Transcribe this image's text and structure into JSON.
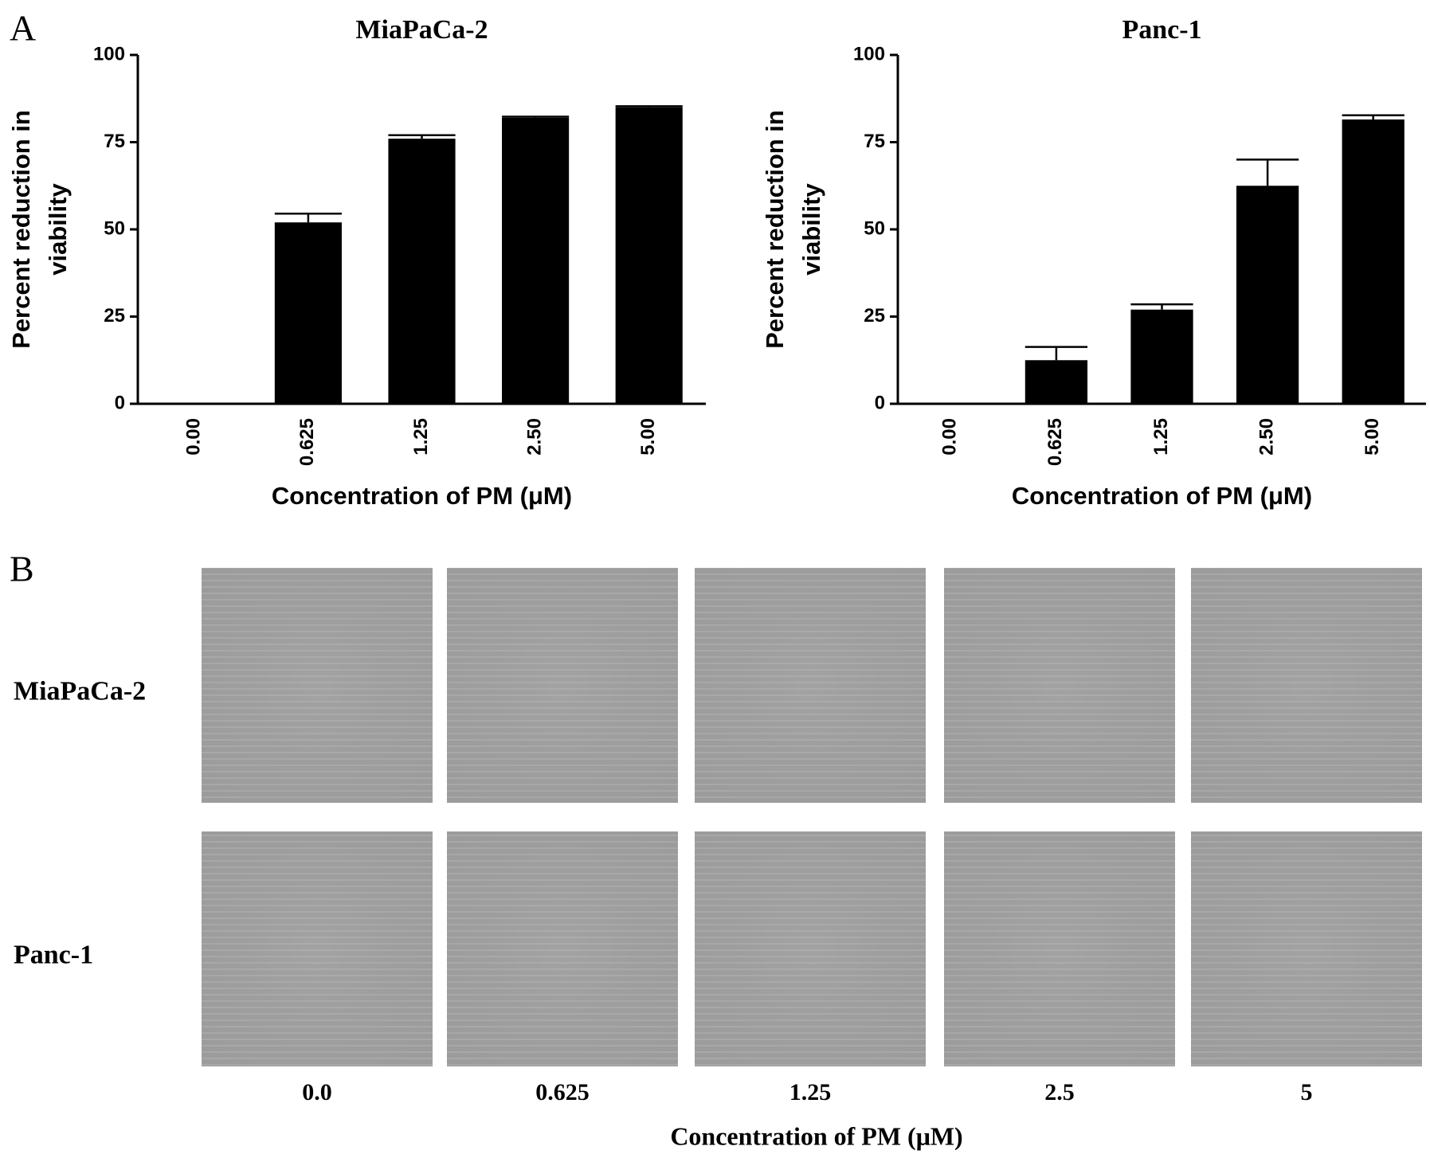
{
  "panel_labels": [
    "A",
    "B"
  ],
  "chart_data": [
    {
      "type": "bar",
      "title": "MiaPaCa-2",
      "ylabel": [
        "Percent reduction in",
        "viability"
      ],
      "xlabel": "Concentration of PM (μM)",
      "categories": [
        "0.00",
        "0.625",
        "1.25",
        "2.50",
        "5.00"
      ],
      "values": [
        0,
        52,
        76,
        82,
        85
      ],
      "errors": [
        0,
        2.5,
        1,
        0.3,
        0.3
      ],
      "color": "#000000",
      "ylim": [
        0,
        100
      ],
      "yticks": [
        0,
        25,
        50,
        75,
        100
      ]
    },
    {
      "type": "bar",
      "title": "Panc-1",
      "ylabel": [
        "Percent reduction in",
        "viability"
      ],
      "xlabel": "Concentration of PM (μM)",
      "categories": [
        "0.00",
        "0.625",
        "1.25",
        "2.50",
        "5.00"
      ],
      "values": [
        0,
        12.5,
        27,
        62.5,
        81.5
      ],
      "errors": [
        0,
        3.8,
        1.5,
        7.5,
        1.2
      ],
      "color": "#000000",
      "ylim": [
        0,
        100
      ],
      "yticks": [
        0,
        25,
        50,
        75,
        100
      ]
    }
  ],
  "micrographs": {
    "rows": [
      "MiaPaCa-2",
      "Panc-1"
    ],
    "columns": [
      "0.0",
      "0.625",
      "1.25",
      "2.5",
      "5"
    ],
    "xlabel": "Concentration of PM (μM)"
  }
}
